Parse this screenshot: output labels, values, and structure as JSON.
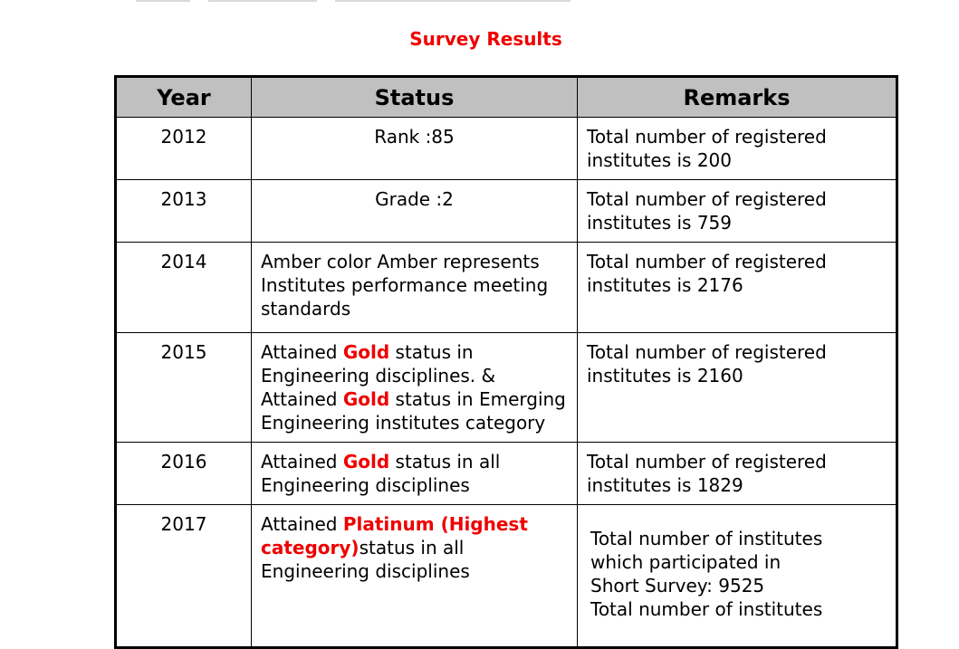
{
  "title": "Survey Results",
  "colors": {
    "title": "#ee0000",
    "header_bg": "#c0c0c0",
    "highlight": "#ee0000"
  },
  "table": {
    "headers": [
      "Year",
      "Status",
      "Remarks"
    ],
    "rows": [
      {
        "year": "2012",
        "status": [
          "Rank :85"
        ],
        "remarks": [
          "Total number of registered institutes is 200"
        ]
      },
      {
        "year": "2013",
        "status": [
          "Grade :2"
        ],
        "remarks": [
          "Total number of registered institutes is 759"
        ]
      },
      {
        "year": "2014",
        "status": [
          "Amber color Amber represents Institutes performance meeting standards"
        ],
        "remarks": [
          "Total number of registered institutes is 2176"
        ]
      },
      {
        "year": "2015",
        "status": [
          "Attained ",
          "Gold",
          " status in Engineering disciplines. & Attained ",
          "Gold",
          " status in Emerging Engineering institutes category"
        ],
        "remarks": [
          "Total number of registered institutes is 2160"
        ]
      },
      {
        "year": "2016",
        "status": [
          "Attained ",
          "Gold",
          " status in all Engineering disciplines"
        ],
        "remarks": [
          "Total number of registered institutes is 1829"
        ]
      },
      {
        "year": "2017",
        "status": [
          "Attained ",
          "Platinum (Highest category)",
          "status in all Engineering disciplines"
        ],
        "remarks": [
          "Total number of institutes",
          "which participated in",
          "Short Survey: 9525",
          "Total number of institutes"
        ]
      }
    ]
  }
}
